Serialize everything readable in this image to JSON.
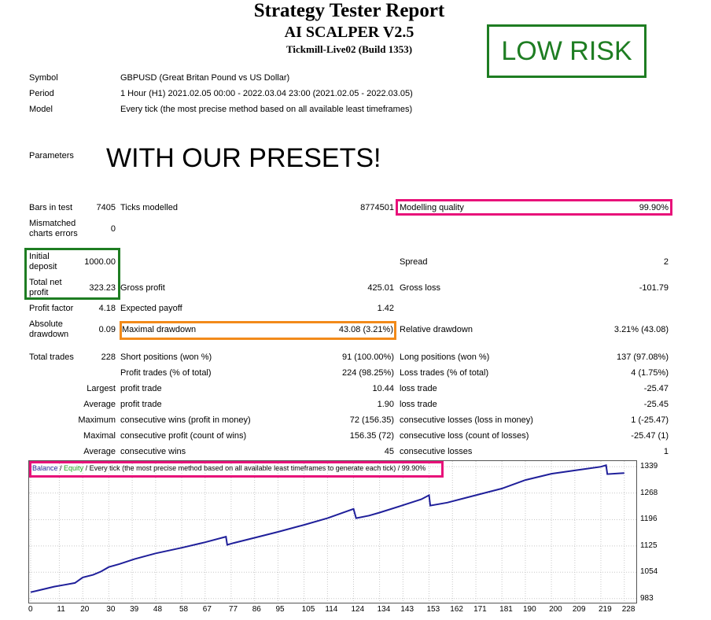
{
  "header": {
    "title": "Strategy Tester Report",
    "ea_name": "AI SCALPER V2.5",
    "server": "Tickmill-Live02 (Build 1353)",
    "risk_badge": "LOW RISK"
  },
  "info": {
    "symbol_label": "Symbol",
    "symbol_value": "GBPUSD (Great Britan Pound vs US Dollar)",
    "period_label": "Period",
    "period_value": "1 Hour (H1) 2021.02.05 00:00 - 2022.03.04 23:00 (2021.02.05 - 2022.03.05)",
    "model_label": "Model",
    "model_value": "Every tick (the most precise method based on all available least timeframes)",
    "parameters_label": "Parameters",
    "parameters_note": "WITH OUR PRESETS!"
  },
  "stats": {
    "bars_label": "Bars in test",
    "bars_value": "7405",
    "ticks_label": "Ticks modelled",
    "ticks_value": "8774501",
    "quality_label": "Modelling quality",
    "quality_value": "99.90%",
    "mismatch_label_1": "Mismatched",
    "mismatch_label_2": "charts errors",
    "mismatch_value": "0",
    "initial_label_1": "Initial",
    "initial_label_2": "deposit",
    "initial_value": "1000.00",
    "spread_label": "Spread",
    "spread_value": "2",
    "net_label_1": "Total net",
    "net_label_2": "profit",
    "net_value": "323.23",
    "gross_profit_label": "Gross profit",
    "gross_profit_value": "425.01",
    "gross_loss_label": "Gross loss",
    "gross_loss_value": "-101.79",
    "pf_label": "Profit factor",
    "pf_value": "4.18",
    "payoff_label": "Expected payoff",
    "payoff_value": "1.42",
    "abs_dd_label_1": "Absolute",
    "abs_dd_label_2": "drawdown",
    "abs_dd_value": "0.09",
    "max_dd_label": "Maximal drawdown",
    "max_dd_value": "43.08 (3.21%)",
    "rel_dd_label": "Relative drawdown",
    "rel_dd_value": "3.21% (43.08)",
    "trades_label": "Total trades",
    "trades_value": "228",
    "short_label": "Short positions (won %)",
    "short_value": "91 (100.00%)",
    "long_label": "Long positions (won %)",
    "long_value": "137 (97.08%)",
    "ptrades_label": "Profit trades (% of total)",
    "ptrades_value": "224 (98.25%)",
    "ltrades_label": "Loss trades (% of total)",
    "ltrades_value": "4 (1.75%)",
    "largest_label": "Largest",
    "largest_profit_label": "profit trade",
    "largest_profit_value": "10.44",
    "largest_loss_label": "loss trade",
    "largest_loss_value": "-25.47",
    "average_label": "Average",
    "average_profit_label": "profit trade",
    "average_profit_value": "1.90",
    "average_loss_label": "loss trade",
    "average_loss_value": "-25.45",
    "maximum_label": "Maximum",
    "max_cons_wins_label": "consecutive wins (profit in money)",
    "max_cons_wins_value": "72 (156.35)",
    "max_cons_losses_label": "consecutive losses (loss in money)",
    "max_cons_losses_value": "1 (-25.47)",
    "maximal_label": "Maximal",
    "maximal_cons_profit_label": "consecutive profit (count of wins)",
    "maximal_cons_profit_value": "156.35 (72)",
    "maximal_cons_loss_label": "consecutive loss (count of losses)",
    "maximal_cons_loss_value": "-25.47 (1)",
    "avg_label": "Average",
    "avg_cons_wins_label": "consecutive wins",
    "avg_cons_wins_value": "45",
    "avg_cons_losses_label": "consecutive losses",
    "avg_cons_losses_value": "1"
  },
  "chart_data": {
    "type": "line",
    "legend_balance": "Balance",
    "legend_sep1": " / ",
    "legend_equity": "Equity",
    "legend_rest": " / Every tick (the most precise method based on all available least timeframes to generate each tick)",
    "legend_sep2": " / ",
    "legend_quality": "99.90%",
    "y_ticks": [
      "1339",
      "1268",
      "1196",
      "1125",
      "1054",
      "983"
    ],
    "x_ticks": [
      "0",
      "11",
      "20",
      "30",
      "39",
      "48",
      "58",
      "67",
      "77",
      "86",
      "95",
      "105",
      "114",
      "124",
      "134",
      "143",
      "153",
      "162",
      "171",
      "181",
      "190",
      "200",
      "209",
      "219",
      "228"
    ],
    "xlim": [
      0,
      232
    ],
    "ylim": [
      976,
      1350
    ],
    "series": [
      {
        "name": "Balance",
        "color": "#1f1f9a",
        "x": [
          0,
          3,
          6,
          9,
          13,
          17,
          20,
          24,
          27,
          30,
          34,
          40,
          48,
          58,
          67,
          75,
          75.5,
          78,
          86,
          95,
          105,
          114,
          124,
          125,
          130,
          134,
          143,
          150,
          153,
          153.5,
          160,
          171,
          181,
          190,
          200,
          209,
          219,
          221,
          221.5,
          226,
          228
        ],
        "y": [
          1000,
          1005,
          1010,
          1015,
          1020,
          1025,
          1040,
          1047,
          1056,
          1068,
          1076,
          1090,
          1105,
          1120,
          1135,
          1150,
          1128,
          1133,
          1147,
          1163,
          1182,
          1200,
          1225,
          1200,
          1207,
          1215,
          1235,
          1251,
          1262,
          1234,
          1242,
          1262,
          1280,
          1303,
          1320,
          1329,
          1339,
          1343,
          1319,
          1321,
          1322
        ]
      }
    ]
  }
}
